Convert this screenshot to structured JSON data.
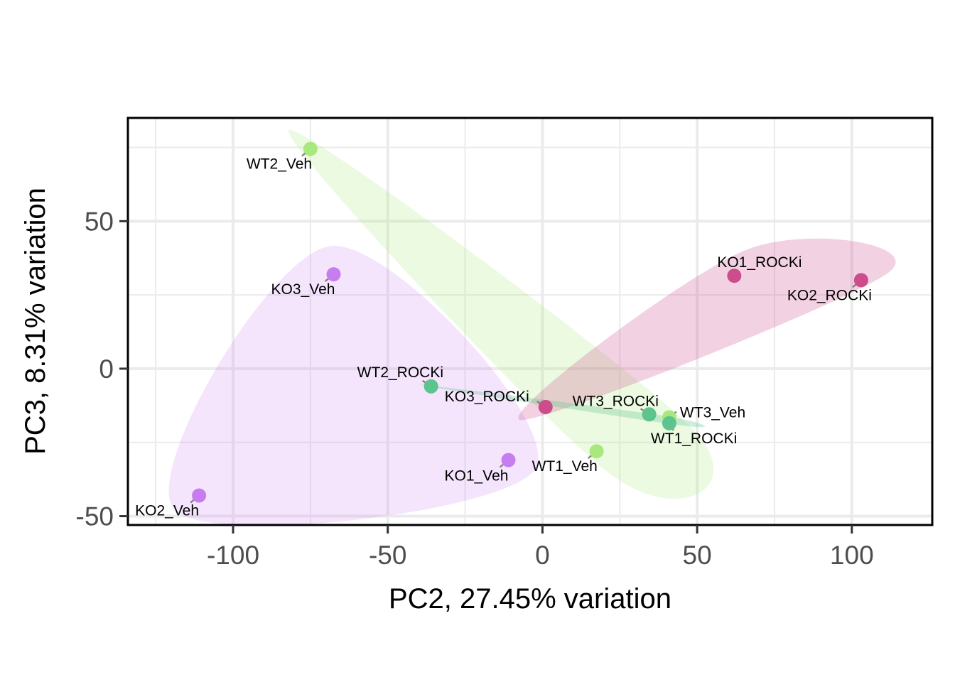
{
  "chart_data": {
    "type": "scatter",
    "title": "",
    "xlabel": "PC2, 27.45% variation",
    "ylabel": "PC3, 8.31% variation",
    "xlim": [
      -134,
      126
    ],
    "ylim": [
      -53,
      85
    ],
    "x_ticks": [
      -100,
      -50,
      0,
      50,
      100
    ],
    "x_tick_labels": [
      "-100",
      "-50",
      "0",
      "50",
      "100"
    ],
    "y_ticks": [
      -50,
      0,
      50
    ],
    "y_tick_labels": [
      "-50",
      "0",
      "50"
    ],
    "grid": true,
    "legend": "none",
    "groups": [
      {
        "key": "veh_ko",
        "color": "#c77cf0"
      },
      {
        "key": "veh_wt",
        "color": "#a8e87c"
      },
      {
        "key": "rocki_ko",
        "color": "#cc4c8c"
      },
      {
        "key": "rocki_wt",
        "color": "#5cc48c"
      }
    ],
    "points": [
      {
        "label": "WT2_Veh",
        "x": -75.0,
        "y": 74.5,
        "group": "veh_wt"
      },
      {
        "label": "KO3_Veh",
        "x": -67.5,
        "y": 32.0,
        "group": "veh_ko"
      },
      {
        "label": "KO2_Veh",
        "x": -111.0,
        "y": -43.0,
        "group": "veh_ko"
      },
      {
        "label": "KO1_Veh",
        "x": -11.0,
        "y": -31.0,
        "group": "veh_ko"
      },
      {
        "label": "WT1_Veh",
        "x": 17.5,
        "y": -28.0,
        "group": "veh_wt"
      },
      {
        "label": "WT3_Veh",
        "x": 41.0,
        "y": -16.5,
        "group": "veh_wt"
      },
      {
        "label": "WT2_ROCKi",
        "x": -36.0,
        "y": -6.0,
        "group": "rocki_wt"
      },
      {
        "label": "KO3_ROCKi",
        "x": 1.0,
        "y": -13.0,
        "group": "rocki_ko"
      },
      {
        "label": "WT3_ROCKi",
        "x": 34.5,
        "y": -15.5,
        "group": "rocki_wt"
      },
      {
        "label": "WT1_ROCKi",
        "x": 41.0,
        "y": -18.5,
        "group": "rocki_wt"
      },
      {
        "label": "KO1_ROCKi",
        "x": 62.0,
        "y": 31.5,
        "group": "rocki_ko"
      },
      {
        "label": "KO2_ROCKi",
        "x": 103.0,
        "y": 30.0,
        "group": "rocki_ko"
      }
    ]
  }
}
